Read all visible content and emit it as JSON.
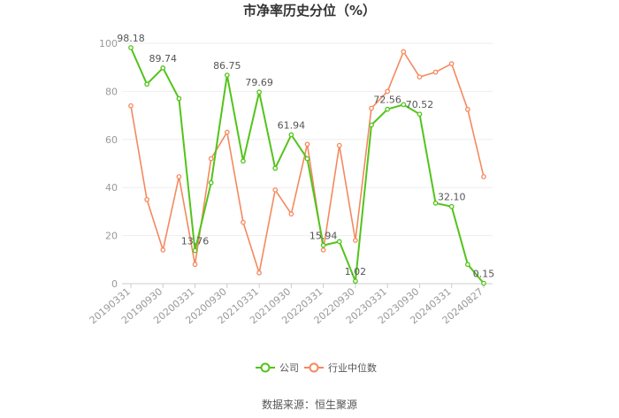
{
  "chart_data": {
    "type": "line",
    "title": "市净率历史分位（%）",
    "source": "数据来源：恒生聚源",
    "ylim": [
      0,
      100
    ],
    "yticks": [
      0,
      20,
      40,
      60,
      80,
      100
    ],
    "grid": true,
    "legend_position": "bottom-center",
    "x_labels": [
      "20190331",
      "20190930",
      "20200331",
      "20200930",
      "20210331",
      "20210930",
      "20220331",
      "20220930",
      "20230331",
      "20230930",
      "20240331",
      "20240827"
    ],
    "series": [
      {
        "name": "公司",
        "color": "#52c41a",
        "values": [
          98.18,
          83,
          89.74,
          77,
          13.76,
          42,
          86.75,
          51,
          79.69,
          48,
          61.94,
          52,
          15.94,
          17.5,
          1.02,
          66,
          72.56,
          74.5,
          70.52,
          33.5,
          32.1,
          8,
          0.15
        ]
      },
      {
        "name": "行业中位数",
        "color": "#f4895f",
        "values": [
          74,
          35,
          14,
          44.5,
          8,
          52,
          63,
          25.5,
          4.5,
          39,
          29,
          58,
          14,
          57.5,
          18,
          73,
          80,
          96.5,
          86,
          88,
          91.5,
          72.5,
          44.5
        ]
      }
    ],
    "data_labels": [
      {
        "index": 0,
        "text": "98.18"
      },
      {
        "index": 2,
        "text": "89.74"
      },
      {
        "index": 4,
        "text": "13.76"
      },
      {
        "index": 6,
        "text": "86.75"
      },
      {
        "index": 8,
        "text": "79.69"
      },
      {
        "index": 10,
        "text": "61.94"
      },
      {
        "index": 12,
        "text": "15.94"
      },
      {
        "index": 14,
        "text": "1.02"
      },
      {
        "index": 16,
        "text": "72.56"
      },
      {
        "index": 18,
        "text": "70.52"
      },
      {
        "index": 20,
        "text": "32.10"
      },
      {
        "index": 22,
        "text": "0.15"
      }
    ]
  }
}
